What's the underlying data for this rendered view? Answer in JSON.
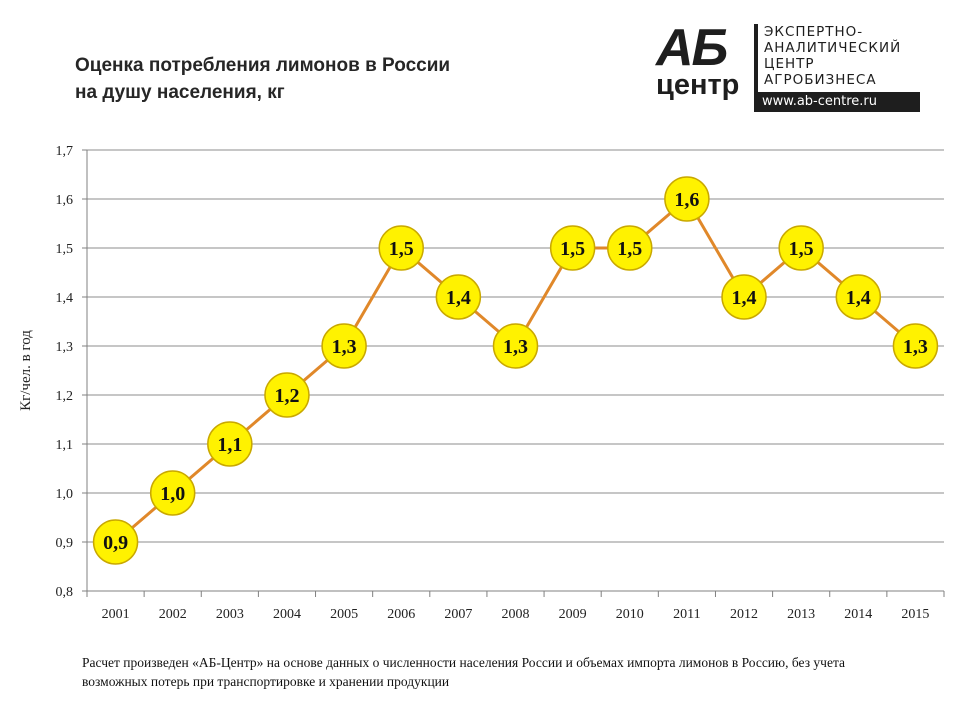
{
  "title": {
    "line1": "Оценка потребления лимонов в России",
    "line2": "на душу населения, кг"
  },
  "logo": {
    "mark_top": "АБ",
    "mark_bottom": "центр",
    "text_lines": [
      "ЭКСПЕРТНО-",
      "АНАЛИТИЧЕСКИЙ",
      "ЦЕНТР",
      "АГРОБИЗНЕСА"
    ],
    "url": "www.ab-centre.ru"
  },
  "chart_data": {
    "type": "line",
    "title": "Оценка потребления лимонов в России на душу населения, кг",
    "xlabel": "",
    "ylabel": "Кг/чел. в год",
    "categories": [
      "2001",
      "2002",
      "2003",
      "2004",
      "2005",
      "2006",
      "2007",
      "2008",
      "2009",
      "2010",
      "2011",
      "2012",
      "2013",
      "2014",
      "2015"
    ],
    "series": [
      {
        "values": [
          0.9,
          1.0,
          1.1,
          1.2,
          1.3,
          1.5,
          1.4,
          1.3,
          1.5,
          1.5,
          1.6,
          1.4,
          1.5,
          1.4,
          1.3
        ],
        "labels": [
          "0,9",
          "1,0",
          "1,1",
          "1,2",
          "1,3",
          "1,5",
          "1,4",
          "1,3",
          "1,5",
          "1,5",
          "1,6",
          "1,4",
          "1,5",
          "1,4",
          "1,3"
        ]
      }
    ],
    "ylim": [
      0.8,
      1.7
    ],
    "yticks": [
      "0,8",
      "0,9",
      "1,0",
      "1,1",
      "1,2",
      "1,3",
      "1,4",
      "1,5",
      "1,6",
      "1,7"
    ],
    "grid": true,
    "line_color": "#E0882A",
    "marker_fill": "#FFF200",
    "marker_stroke": "#C9A800"
  },
  "footnote": "Расчет произведен «АБ-Центр» на основе данных о численности населения России и объемах импорта лимонов в Россию, без учета возможных потерь при транспортировке и хранении продукции"
}
